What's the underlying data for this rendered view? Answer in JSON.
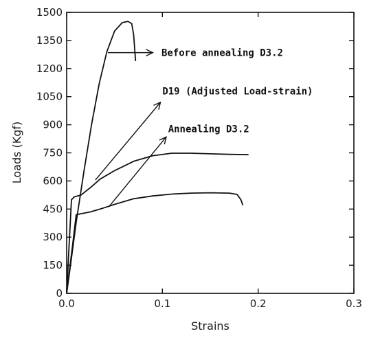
{
  "chart_data": {
    "type": "line",
    "xlabel": "Strains",
    "ylabel": "Loads (Kgf)",
    "xlim": [
      0,
      0.3
    ],
    "ylim": [
      0,
      1500
    ],
    "x_ticks": [
      "0.0",
      "0.1",
      "0.2",
      "0.3"
    ],
    "y_ticks": [
      "0",
      "150",
      "300",
      "450",
      "600",
      "750",
      "900",
      "1050",
      "1200",
      "1350",
      "1500"
    ],
    "grid": false,
    "series": [
      {
        "name": "Before annealing D3.2",
        "points": [
          [
            0,
            0
          ],
          [
            0.004,
            150
          ],
          [
            0.01,
            380
          ],
          [
            0.018,
            650
          ],
          [
            0.026,
            900
          ],
          [
            0.034,
            1120
          ],
          [
            0.042,
            1290
          ],
          [
            0.05,
            1400
          ],
          [
            0.058,
            1445
          ],
          [
            0.064,
            1452
          ],
          [
            0.068,
            1440
          ],
          [
            0.07,
            1380
          ],
          [
            0.071,
            1310
          ],
          [
            0.072,
            1240
          ]
        ]
      },
      {
        "name": "D19 (Adjusted Load-strain)",
        "points": [
          [
            0,
            0
          ],
          [
            0.003,
            300
          ],
          [
            0.005,
            500
          ],
          [
            0.008,
            515
          ],
          [
            0.015,
            525
          ],
          [
            0.025,
            565
          ],
          [
            0.035,
            610
          ],
          [
            0.05,
            655
          ],
          [
            0.07,
            705
          ],
          [
            0.09,
            735
          ],
          [
            0.11,
            748
          ],
          [
            0.13,
            748
          ],
          [
            0.15,
            745
          ],
          [
            0.17,
            742
          ],
          [
            0.19,
            740
          ]
        ]
      },
      {
        "name": "Annealing D3.2",
        "points": [
          [
            0,
            0
          ],
          [
            0.006,
            250
          ],
          [
            0.01,
            420
          ],
          [
            0.015,
            425
          ],
          [
            0.025,
            435
          ],
          [
            0.035,
            450
          ],
          [
            0.05,
            475
          ],
          [
            0.07,
            505
          ],
          [
            0.09,
            520
          ],
          [
            0.11,
            530
          ],
          [
            0.13,
            535
          ],
          [
            0.15,
            537
          ],
          [
            0.17,
            535
          ],
          [
            0.178,
            528
          ],
          [
            0.182,
            500
          ],
          [
            0.184,
            470
          ]
        ]
      }
    ],
    "annotations": [
      {
        "text": "Before annealing D3.2",
        "arrow_from": [
          0.043,
          1285
        ],
        "arrow_to": [
          0.09,
          1285
        ],
        "text_at": [
          0.099,
          1285
        ]
      },
      {
        "text": "D19 (Adjusted Load-strain)",
        "arrow_from": [
          0.03,
          605
        ],
        "arrow_to": [
          0.098,
          1020
        ],
        "text_at": [
          0.1,
          1080
        ]
      },
      {
        "text": "Annealing D3.2",
        "arrow_from": [
          0.044,
          462
        ],
        "arrow_to": [
          0.104,
          835
        ],
        "text_at": [
          0.106,
          878
        ]
      }
    ]
  }
}
